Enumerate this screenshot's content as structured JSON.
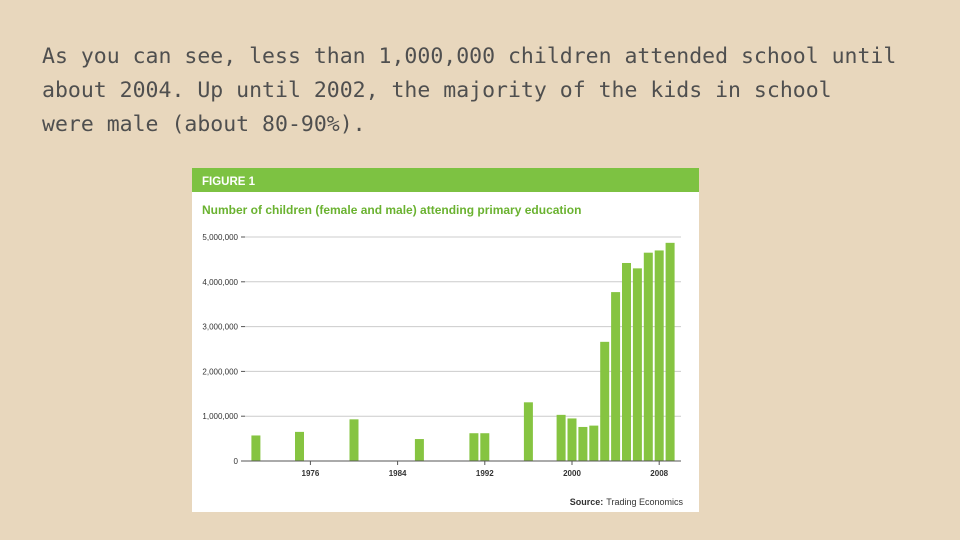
{
  "slide": {
    "body_text": "As you can see, less than 1,000,000 children attended school until\nabout 2004.  Up until 2002, the majority of the kids in school\nwere male (about 80-90%)."
  },
  "figure": {
    "label": "FIGURE 1",
    "source_label": "Source:",
    "source_name": "Trading Economics",
    "colors": {
      "header_bg": "#7dc242",
      "bar": "#86c441",
      "title": "#6ab230",
      "axis": "#555555",
      "grid": "#cccccc"
    }
  },
  "chart_data": {
    "type": "bar",
    "title": "Number of children (female and male) attending primary education",
    "xlabel": "",
    "ylabel": "",
    "x_range": [
      1970,
      2010
    ],
    "xticks": [
      1976,
      1984,
      1992,
      2000,
      2008
    ],
    "ylim": [
      0,
      5000000
    ],
    "yticks": [
      {
        "value": 0,
        "label": "0"
      },
      {
        "value": 1000000,
        "label": "1,000,000"
      },
      {
        "value": 2000000,
        "label": "2,000,000"
      },
      {
        "value": 3000000,
        "label": "3,000,000"
      },
      {
        "value": 4000000,
        "label": "4,000,000"
      },
      {
        "value": 5000000,
        "label": "5,000,000"
      }
    ],
    "grid": "horizontal",
    "points": [
      {
        "x": 1971,
        "y": 570000
      },
      {
        "x": 1975,
        "y": 650000
      },
      {
        "x": 1980,
        "y": 930000
      },
      {
        "x": 1986,
        "y": 490000
      },
      {
        "x": 1991,
        "y": 620000
      },
      {
        "x": 1992,
        "y": 620000
      },
      {
        "x": 1996,
        "y": 1310000
      },
      {
        "x": 1999,
        "y": 1030000
      },
      {
        "x": 2000,
        "y": 950000
      },
      {
        "x": 2001,
        "y": 760000
      },
      {
        "x": 2002,
        "y": 790000
      },
      {
        "x": 2003,
        "y": 2660000
      },
      {
        "x": 2004,
        "y": 3770000
      },
      {
        "x": 2005,
        "y": 4420000
      },
      {
        "x": 2006,
        "y": 4300000
      },
      {
        "x": 2007,
        "y": 4650000
      },
      {
        "x": 2008,
        "y": 4700000
      },
      {
        "x": 2009,
        "y": 4870000
      }
    ]
  }
}
